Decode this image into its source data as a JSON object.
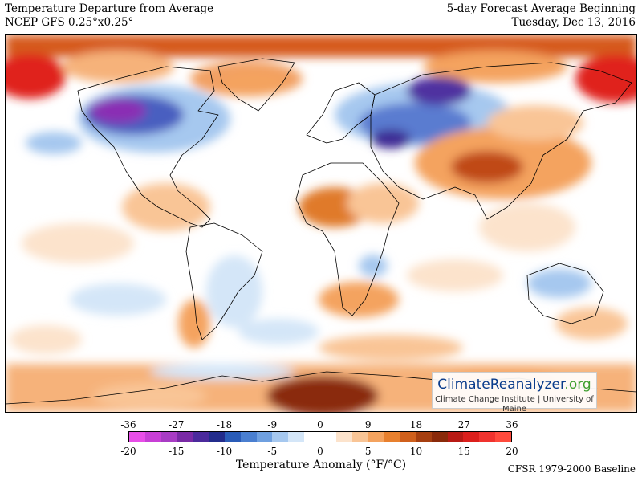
{
  "header": {
    "title": "Temperature Departure from Average",
    "model": "NCEP GFS 0.25°x0.25°",
    "forecast": "5-day Forecast Average Beginning",
    "date": "Tuesday, Dec 13, 2016"
  },
  "brand": {
    "name_part1": "ClimateReanalyzer",
    "name_part2": ".org",
    "subtitle": "Climate Change Institute | University of Maine"
  },
  "legend": {
    "ticks_f": [
      "-36",
      "-27",
      "-18",
      "-9",
      "0",
      "9",
      "18",
      "27",
      "36"
    ],
    "ticks_c": [
      "-20",
      "-15",
      "-10",
      "-5",
      "0",
      "5",
      "10",
      "15",
      "20"
    ],
    "label": "Temperature Anomaly (°F/°C)",
    "baseline": "CFSR 1979-2000 Baseline",
    "colors": [
      "#e84ee8",
      "#c83fd6",
      "#a83cc4",
      "#7a2aa6",
      "#4b2a9c",
      "#232c8c",
      "#2a5cb8",
      "#4a7fd0",
      "#6fa0e0",
      "#a6c8ef",
      "#d4e6f8",
      "#ffffff",
      "#ffffff",
      "#fce3cc",
      "#f9c596",
      "#f4a35f",
      "#e8802e",
      "#d0601c",
      "#a63f10",
      "#8a2a0a",
      "#b81a14",
      "#dc1f1c",
      "#f0332e",
      "#ff4a3c"
    ]
  }
}
